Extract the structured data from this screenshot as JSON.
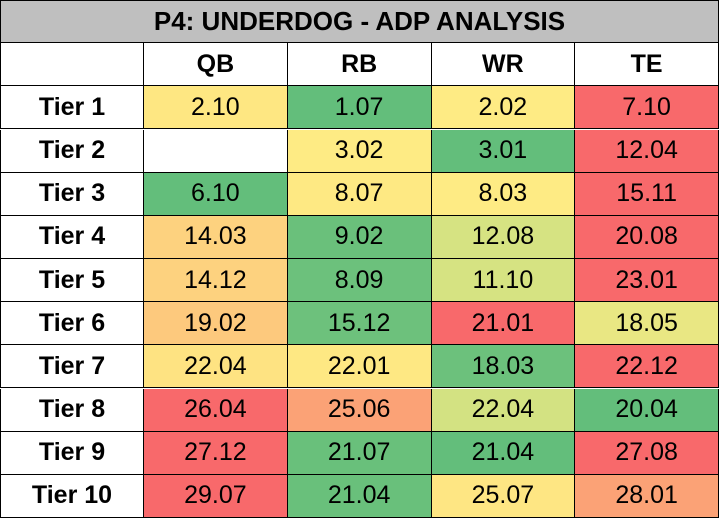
{
  "header": {
    "title": "P4: UNDERDOG - ADP ANALYSIS"
  },
  "table": {
    "columns": [
      "QB",
      "RB",
      "WR",
      "TE"
    ],
    "rows": [
      {
        "label": "Tier 1",
        "cells": [
          "2.10",
          "1.07",
          "2.02",
          "7.10"
        ],
        "colors": [
          "#fee782",
          "#63be7b",
          "#feeb84",
          "#f8696b"
        ]
      },
      {
        "label": "Tier 2",
        "cells": [
          null,
          "3.02",
          "3.01",
          "12.04"
        ],
        "colors": [
          null,
          "#feeb84",
          "#63be7b",
          "#f8696b"
        ]
      },
      {
        "label": "Tier 3",
        "cells": [
          "6.10",
          "8.07",
          "8.03",
          "15.11"
        ],
        "colors": [
          "#63be7b",
          "#fee983",
          "#feeb84",
          "#f8696b"
        ]
      },
      {
        "label": "Tier 4",
        "cells": [
          "14.03",
          "9.02",
          "12.08",
          "20.08"
        ],
        "colors": [
          "#fdd27f",
          "#6ac07b",
          "#d6e382",
          "#f8696b"
        ]
      },
      {
        "label": "Tier 5",
        "cells": [
          "14.12",
          "8.09",
          "11.10",
          "23.01"
        ],
        "colors": [
          "#fdd27f",
          "#6cc17c",
          "#d6e382",
          "#f8696b"
        ]
      },
      {
        "label": "Tier 6",
        "cells": [
          "19.02",
          "15.12",
          "21.01",
          "18.05"
        ],
        "colors": [
          "#fdc97d",
          "#6dc17c",
          "#f8696b",
          "#e9e783"
        ]
      },
      {
        "label": "Tier 7",
        "cells": [
          "22.04",
          "22.01",
          "18.03",
          "22.12"
        ],
        "colors": [
          "#fee382",
          "#fee883",
          "#6cc17c",
          "#f8696b"
        ]
      },
      {
        "label": "Tier 8",
        "cells": [
          "26.04",
          "25.06",
          "22.04",
          "20.04"
        ],
        "colors": [
          "#f8696b",
          "#fba276",
          "#d3e282",
          "#63be7b"
        ]
      },
      {
        "label": "Tier 9",
        "cells": [
          "27.12",
          "21.07",
          "21.04",
          "27.08"
        ],
        "colors": [
          "#f8696b",
          "#69c07b",
          "#63be7b",
          "#f8696b"
        ]
      },
      {
        "label": "Tier 10",
        "cells": [
          "29.07",
          "21.04",
          "25.07",
          "28.01"
        ],
        "colors": [
          "#f8696b",
          "#69c07b",
          "#fee683",
          "#fba276"
        ]
      }
    ]
  }
}
